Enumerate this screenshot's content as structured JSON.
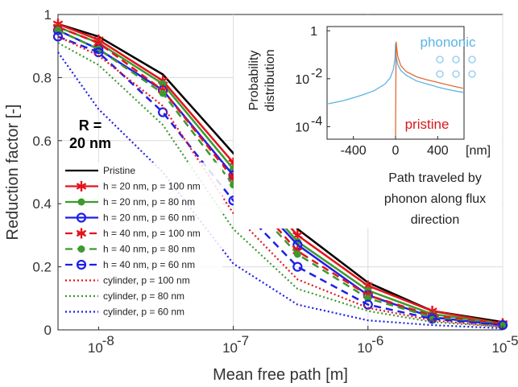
{
  "chart_data": {
    "type": "line",
    "xlabel": "Mean free path [m]",
    "ylabel": "Reduction factor [-]",
    "xscale": "log",
    "xlim": [
      5e-09,
      1e-05
    ],
    "ylim": [
      0,
      1
    ],
    "x_tick_labels": [
      "10",
      "10",
      "10",
      "10"
    ],
    "x_tick_exponents": [
      "-8",
      "-7",
      "-6",
      "-5"
    ],
    "x_tick_values": [
      1e-08,
      1e-07,
      1e-06,
      1e-05
    ],
    "y_tick_labels": [
      "0",
      "0.2",
      "0.4",
      "0.6",
      "0.8",
      "1"
    ],
    "y_tick_values": [
      0,
      0.2,
      0.4,
      0.6,
      0.8,
      1
    ],
    "grid": true,
    "legend_position": "bottom-left",
    "annotation": {
      "line1": "R =",
      "line2": "20 nm"
    },
    "x": [
      5e-09,
      1e-08,
      3e-08,
      1e-07,
      3e-07,
      1e-06,
      3e-06,
      1e-05
    ],
    "series": [
      {
        "name": "Pristine",
        "color": "#000000",
        "style": "solid",
        "marker": "none",
        "values": [
          0.97,
          0.93,
          0.81,
          0.56,
          0.32,
          0.15,
          0.06,
          0.025
        ]
      },
      {
        "name": "h = 20 nm, p = 100 nm",
        "color": "#e3141b",
        "style": "solid",
        "marker": "star",
        "values": [
          0.97,
          0.92,
          0.79,
          0.53,
          0.3,
          0.14,
          0.06,
          0.02
        ]
      },
      {
        "name": "h = 20 nm, p = 80 nm",
        "color": "#3d9b2e",
        "style": "solid",
        "marker": "dot",
        "values": [
          0.96,
          0.91,
          0.78,
          0.51,
          0.28,
          0.125,
          0.05,
          0.02
        ]
      },
      {
        "name": "h = 20 nm, p = 60 nm",
        "color": "#1f1fe8",
        "style": "solid",
        "marker": "circle",
        "values": [
          0.95,
          0.89,
          0.76,
          0.49,
          0.27,
          0.11,
          0.04,
          0.015
        ]
      },
      {
        "name": "h = 40 nm, p = 100 nm",
        "color": "#e3141b",
        "style": "dashed",
        "marker": "star",
        "values": [
          0.96,
          0.91,
          0.76,
          0.48,
          0.25,
          0.11,
          0.045,
          0.02
        ]
      },
      {
        "name": "h = 40 nm, p = 80 nm",
        "color": "#3d9b2e",
        "style": "dashed",
        "marker": "dot",
        "values": [
          0.95,
          0.89,
          0.75,
          0.46,
          0.24,
          0.1,
          0.04,
          0.015
        ]
      },
      {
        "name": "h = 40 nm, p = 60 nm",
        "color": "#1f1fe8",
        "style": "dashed",
        "marker": "circle",
        "values": [
          0.93,
          0.88,
          0.69,
          0.41,
          0.2,
          0.08,
          0.035,
          0.015
        ]
      },
      {
        "name": "cylinder, p = 100 nm",
        "color": "#e3141b",
        "style": "dotted",
        "marker": "none",
        "values": [
          0.93,
          0.87,
          0.71,
          0.37,
          0.16,
          0.07,
          0.03,
          0.01
        ]
      },
      {
        "name": "cylinder, p = 80 nm",
        "color": "#3d9b2e",
        "style": "dotted",
        "marker": "none",
        "values": [
          0.91,
          0.84,
          0.65,
          0.32,
          0.13,
          0.06,
          0.025,
          0.01
        ]
      },
      {
        "name": "cylinder, p = 60 nm",
        "color": "#1f1fe8",
        "style": "dotted",
        "marker": "none",
        "values": [
          0.88,
          0.7,
          0.5,
          0.21,
          0.08,
          0.03,
          0.015,
          0.005
        ]
      }
    ],
    "inset": {
      "ylabel_line1": "Probability",
      "ylabel_line2": "distribution",
      "xlabel_line1": "Path traveled by",
      "xlabel_line2": "phonon along flux",
      "xlabel_line3": "direction",
      "x_unit": "[nm]",
      "yscale": "log",
      "xlim": [
        -650,
        650
      ],
      "ylim": [
        3e-05,
        1.5
      ],
      "x_tick_labels": [
        "-400",
        "0",
        "400"
      ],
      "x_tick_values": [
        -400,
        0,
        400
      ],
      "y_tick_labels": [
        "1",
        "10",
        "10"
      ],
      "y_tick_exponents": [
        "",
        "-2",
        "-4"
      ],
      "y_tick_values": [
        1,
        0.01,
        0.0001
      ],
      "series": [
        {
          "name": "phononic",
          "color": "#5ab4e6",
          "x": [
            -640,
            -500,
            -400,
            -300,
            -200,
            -100,
            -50,
            -20,
            -5,
            0,
            5,
            20,
            50,
            100,
            200,
            300,
            400,
            500,
            640
          ],
          "y": [
            0.0009,
            0.0012,
            0.0016,
            0.0022,
            0.0032,
            0.006,
            0.011,
            0.025,
            0.07,
            0.3,
            0.09,
            0.04,
            0.022,
            0.014,
            0.008,
            0.006,
            0.0045,
            0.0035,
            0.0027
          ]
        },
        {
          "name": "pristine",
          "color": "#e26a35",
          "x": [
            0,
            5,
            20,
            50,
            100,
            200,
            300,
            400,
            500,
            640
          ],
          "y": [
            4e-05,
            0.35,
            0.09,
            0.035,
            0.02,
            0.012,
            0.009,
            0.007,
            0.0055,
            0.004
          ]
        }
      ]
    }
  }
}
